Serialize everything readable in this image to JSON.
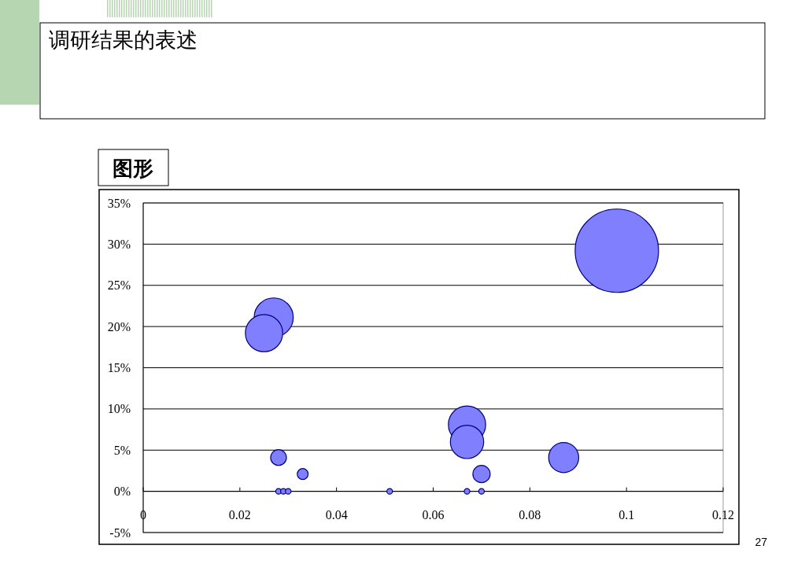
{
  "chart_data": {
    "type": "bubble",
    "title": "调研结果的表述",
    "subtitle": "图形",
    "x": [
      0.098,
      0.027,
      0.025,
      0.067,
      0.067,
      0.087,
      0.028,
      0.07,
      0.033,
      0.028,
      0.029,
      0.03,
      0.051,
      0.067,
      0.07
    ],
    "values": [
      29.2,
      21.1,
      19.2,
      8.1,
      6.0,
      4.1,
      4.1,
      2.1,
      2.1,
      0,
      0,
      0,
      0,
      0,
      0
    ],
    "sizes": [
      1,
      0.22,
      0.2,
      0.2,
      0.16,
      0.13,
      0.036,
      0.043,
      0.017,
      0.0045,
      0.0045,
      0.0045,
      0.0045,
      0.0045,
      0.0045
    ],
    "color": "#8080ff",
    "xlim": [
      0,
      0.12
    ],
    "xticks": [
      0,
      0.02,
      0.04,
      0.06,
      0.08,
      0.1,
      0.12
    ],
    "ylim": [
      -5,
      35
    ],
    "yticks": [
      {
        "value": -5,
        "label": "-5%"
      },
      {
        "value": 0,
        "label": "0%"
      },
      {
        "value": 5,
        "label": "5%"
      },
      {
        "value": 10,
        "label": "10%"
      },
      {
        "value": 15,
        "label": "15%"
      },
      {
        "value": 20,
        "label": "20%"
      },
      {
        "value": 25,
        "label": "25%"
      },
      {
        "value": 30,
        "label": "30%"
      },
      {
        "value": 35,
        "label": "35%"
      }
    ],
    "grid": "y",
    "annotations": [
      "27"
    ]
  }
}
